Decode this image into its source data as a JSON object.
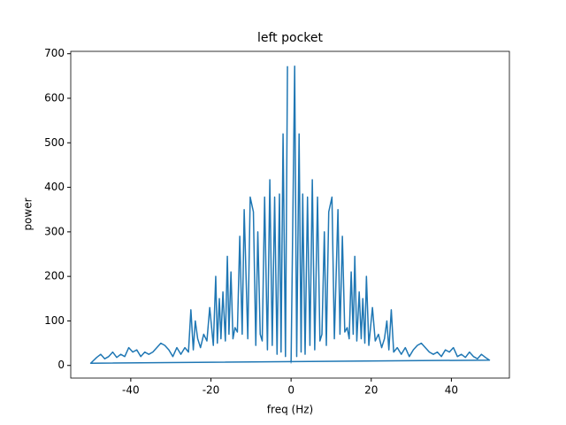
{
  "chart_data": {
    "type": "line",
    "title": "left pocket",
    "x_label": "freq (Hz)",
    "y_label": "power",
    "color": "#1f77b4",
    "x": [
      0,
      0.9,
      1.4,
      2.0,
      2.5,
      2.9,
      3.5,
      4.1,
      4.7,
      5.3,
      5.9,
      6.6,
      7.2,
      7.7,
      8.3,
      8.8,
      9.4,
      10.2,
      10.8,
      11.7,
      12.2,
      12.8,
      13.4,
      14.0,
      14.5,
      15.0,
      15.5,
      15.9,
      16.4,
      17.0,
      17.5,
      17.9,
      18.4,
      18.8,
      19.4,
      20.3,
      21.0,
      21.8,
      22.6,
      23.3,
      23.9,
      24.4,
      25.0,
      25.6,
      26.5,
      27.5,
      28.5,
      29.5,
      30.5,
      31.5,
      32.5,
      33.5,
      34.5,
      35.5,
      36.5,
      37.5,
      38.5,
      39.5,
      40.5,
      41.5,
      42.5,
      43.5,
      44.5,
      45.5,
      46.5,
      47.5,
      48.5,
      49.5,
      -50,
      -48.5,
      -47.5,
      -46.5,
      -45.5,
      -44.5,
      -43.5,
      -42.5,
      -41.5,
      -40.5,
      -39.5,
      -38.5,
      -37.5,
      -36.5,
      -35.5,
      -34.5,
      -33.5,
      -32.5,
      -31.5,
      -30.5,
      -29.5,
      -28.5,
      -27.5,
      -26.5,
      -25.6,
      -25.0,
      -24.4,
      -23.9,
      -23.3,
      -22.6,
      -21.8,
      -21.0,
      -20.3,
      -19.4,
      -18.8,
      -18.4,
      -17.9,
      -17.5,
      -17.0,
      -16.4,
      -15.9,
      -15.5,
      -15.0,
      -14.5,
      -14.0,
      -13.4,
      -12.8,
      -12.2,
      -11.7,
      -10.8,
      -10.2,
      -9.4,
      -8.8,
      -8.3,
      -7.7,
      -7.2,
      -6.6,
      -5.9,
      -5.3,
      -4.7,
      -4.1,
      -3.5,
      -2.9,
      -2.5,
      -2.0,
      -1.4,
      -0.9
    ],
    "values": [
      5,
      672,
      20,
      520,
      30,
      385,
      25,
      378,
      45,
      417,
      35,
      378,
      55,
      70,
      300,
      45,
      345,
      378,
      60,
      350,
      70,
      290,
      75,
      85,
      60,
      210,
      70,
      245,
      55,
      165,
      60,
      150,
      50,
      200,
      45,
      130,
      55,
      70,
      40,
      60,
      100,
      35,
      125,
      30,
      40,
      25,
      40,
      20,
      35,
      45,
      50,
      40,
      30,
      25,
      30,
      20,
      35,
      30,
      40,
      20,
      25,
      18,
      30,
      20,
      15,
      25,
      18,
      12,
      5,
      18,
      25,
      15,
      20,
      30,
      18,
      25,
      20,
      40,
      30,
      35,
      20,
      30,
      25,
      30,
      40,
      50,
      45,
      35,
      20,
      40,
      25,
      40,
      30,
      125,
      35,
      100,
      60,
      40,
      70,
      55,
      130,
      45,
      200,
      50,
      150,
      60,
      165,
      55,
      245,
      70,
      210,
      60,
      85,
      75,
      290,
      70,
      350,
      60,
      378,
      345,
      45,
      300,
      70,
      55,
      378,
      35,
      417,
      45,
      378,
      25,
      385,
      30,
      520,
      20,
      672
    ],
    "xlim": [
      -54.975,
      54.475
    ],
    "ylim": [
      -28.35,
      705.35
    ],
    "xticks": [
      -40,
      -20,
      0,
      20,
      40
    ],
    "yticks": [
      0,
      100,
      200,
      300,
      400,
      500,
      600,
      700
    ]
  }
}
